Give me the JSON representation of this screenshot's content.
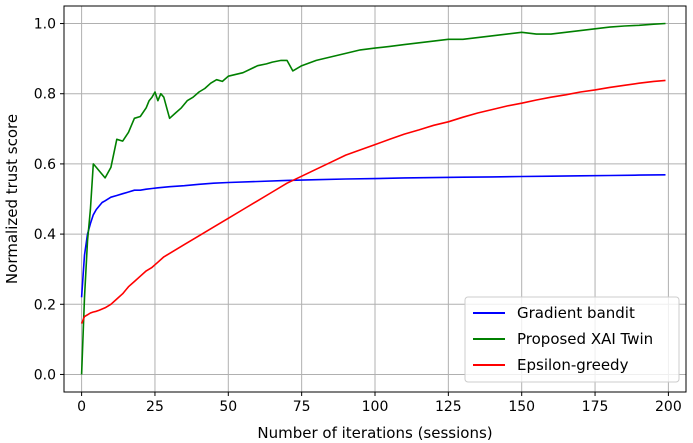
{
  "chart_data": {
    "type": "line",
    "title": "",
    "xlabel": "Number of iterations (sessions)",
    "ylabel": "Normalized trust score",
    "xlim": [
      -6,
      206
    ],
    "ylim": [
      -0.05,
      1.05
    ],
    "xticks": [
      0,
      25,
      50,
      75,
      100,
      125,
      150,
      175,
      200
    ],
    "yticks": [
      0.0,
      0.2,
      0.4,
      0.6,
      0.8,
      1.0
    ],
    "xtick_labels": [
      "0",
      "25",
      "50",
      "75",
      "100",
      "125",
      "150",
      "175",
      "200"
    ],
    "ytick_labels": [
      "0.0",
      "0.2",
      "0.4",
      "0.6",
      "0.8",
      "1.0"
    ],
    "grid": true,
    "legend_position": "lower-right",
    "series": [
      {
        "name": "Gradient bandit",
        "color": "#0000ff",
        "x": [
          0,
          1,
          2,
          3,
          4,
          5,
          6,
          7,
          8,
          10,
          12,
          14,
          16,
          18,
          20,
          22,
          24,
          26,
          30,
          35,
          40,
          45,
          50,
          60,
          70,
          80,
          90,
          100,
          110,
          120,
          130,
          140,
          150,
          160,
          170,
          180,
          190,
          199
        ],
        "y": [
          0.22,
          0.34,
          0.4,
          0.43,
          0.455,
          0.47,
          0.48,
          0.49,
          0.495,
          0.505,
          0.51,
          0.515,
          0.52,
          0.525,
          0.525,
          0.528,
          0.53,
          0.532,
          0.535,
          0.538,
          0.542,
          0.545,
          0.547,
          0.55,
          0.553,
          0.555,
          0.557,
          0.558,
          0.56,
          0.561,
          0.562,
          0.563,
          0.564,
          0.565,
          0.566,
          0.567,
          0.568,
          0.569
        ]
      },
      {
        "name": "Proposed XAI Twin",
        "color": "#008000",
        "x": [
          0,
          1,
          2,
          3,
          4,
          5,
          6,
          8,
          10,
          12,
          14,
          16,
          18,
          20,
          22,
          23,
          24,
          25,
          26,
          27,
          28,
          29,
          30,
          32,
          34,
          36,
          38,
          40,
          42,
          44,
          46,
          48,
          50,
          55,
          60,
          63,
          65,
          68,
          70,
          72,
          75,
          80,
          85,
          90,
          95,
          100,
          105,
          110,
          115,
          120,
          125,
          130,
          135,
          140,
          145,
          150,
          155,
          160,
          165,
          170,
          175,
          180,
          185,
          190,
          195,
          199
        ],
        "y": [
          0.0,
          0.22,
          0.38,
          0.47,
          0.6,
          0.59,
          0.58,
          0.56,
          0.59,
          0.67,
          0.665,
          0.69,
          0.73,
          0.735,
          0.76,
          0.78,
          0.79,
          0.805,
          0.78,
          0.8,
          0.79,
          0.76,
          0.73,
          0.745,
          0.76,
          0.78,
          0.79,
          0.805,
          0.815,
          0.83,
          0.84,
          0.835,
          0.85,
          0.86,
          0.88,
          0.885,
          0.89,
          0.895,
          0.895,
          0.865,
          0.88,
          0.895,
          0.905,
          0.915,
          0.925,
          0.93,
          0.935,
          0.94,
          0.945,
          0.95,
          0.955,
          0.955,
          0.96,
          0.965,
          0.97,
          0.975,
          0.97,
          0.97,
          0.975,
          0.98,
          0.985,
          0.99,
          0.993,
          0.995,
          0.998,
          1.0
        ]
      },
      {
        "name": "Epsilon-greedy",
        "color": "#ff0000",
        "x": [
          0,
          1,
          2,
          3,
          4,
          5,
          6,
          8,
          10,
          12,
          14,
          16,
          18,
          20,
          22,
          24,
          26,
          28,
          30,
          35,
          40,
          45,
          50,
          55,
          60,
          65,
          70,
          75,
          80,
          85,
          90,
          95,
          100,
          105,
          110,
          115,
          120,
          125,
          130,
          135,
          140,
          145,
          150,
          155,
          160,
          165,
          170,
          175,
          180,
          185,
          190,
          195,
          199
        ],
        "y": [
          0.145,
          0.165,
          0.17,
          0.175,
          0.178,
          0.18,
          0.183,
          0.19,
          0.2,
          0.215,
          0.23,
          0.25,
          0.265,
          0.28,
          0.295,
          0.305,
          0.32,
          0.335,
          0.345,
          0.37,
          0.395,
          0.42,
          0.445,
          0.47,
          0.495,
          0.52,
          0.545,
          0.565,
          0.585,
          0.605,
          0.625,
          0.64,
          0.655,
          0.67,
          0.685,
          0.697,
          0.71,
          0.72,
          0.733,
          0.745,
          0.755,
          0.765,
          0.773,
          0.782,
          0.79,
          0.797,
          0.805,
          0.811,
          0.818,
          0.824,
          0.83,
          0.835,
          0.838
        ]
      }
    ]
  }
}
